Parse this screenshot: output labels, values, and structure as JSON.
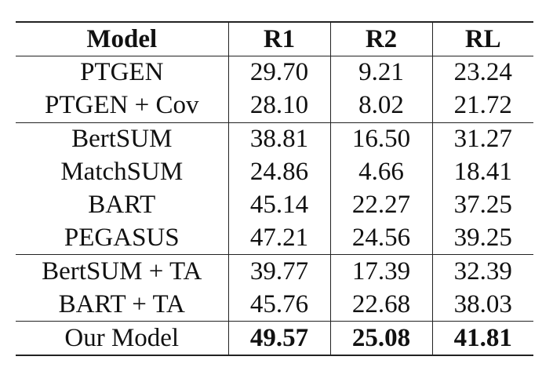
{
  "table": {
    "headers": [
      "Model",
      "R1",
      "R2",
      "RL"
    ],
    "rows": [
      {
        "model": "PTGEN",
        "r1": "29.70",
        "r2": "9.21",
        "rl": "23.24"
      },
      {
        "model": "PTGEN + Cov",
        "r1": "28.10",
        "r2": "8.02",
        "rl": "21.72"
      },
      {
        "model": "BertSUM",
        "r1": "38.81",
        "r2": "16.50",
        "rl": "31.27"
      },
      {
        "model": "MatchSUM",
        "r1": "24.86",
        "r2": "4.66",
        "rl": "18.41"
      },
      {
        "model": "BART",
        "r1": "45.14",
        "r2": "22.27",
        "rl": "37.25"
      },
      {
        "model": "PEGASUS",
        "r1": "47.21",
        "r2": "24.56",
        "rl": "39.25"
      },
      {
        "model": "BertSUM + TA",
        "r1": "39.77",
        "r2": "17.39",
        "rl": "32.39"
      },
      {
        "model": "BART + TA",
        "r1": "45.76",
        "r2": "22.68",
        "rl": "38.03"
      },
      {
        "model": "Our Model",
        "r1": "49.57",
        "r2": "25.08",
        "rl": "41.81"
      }
    ]
  }
}
